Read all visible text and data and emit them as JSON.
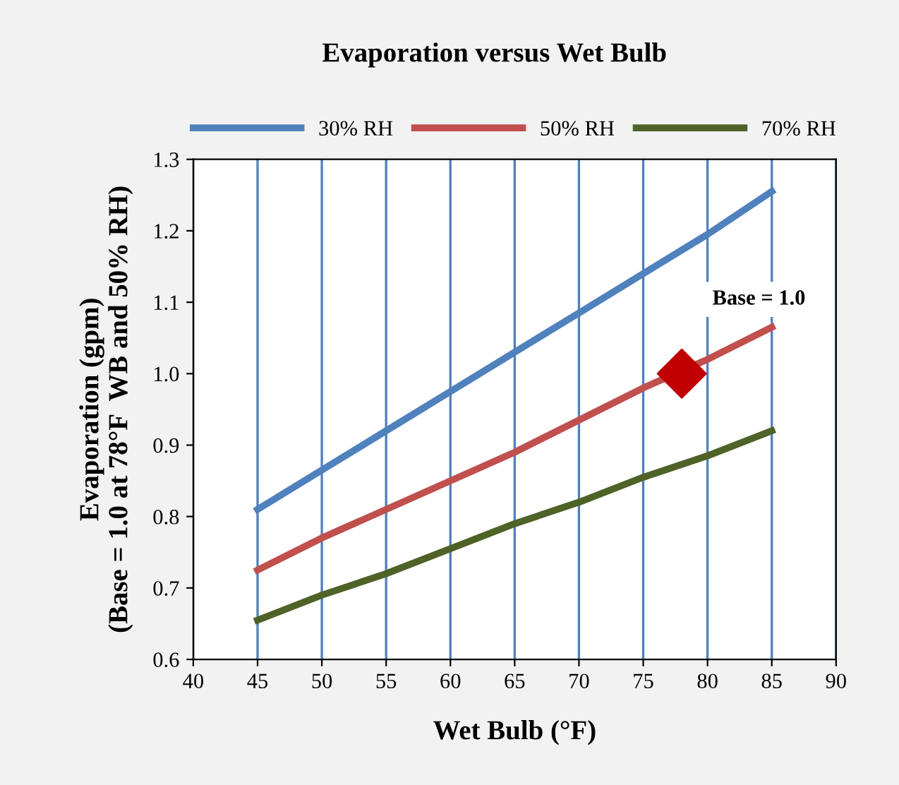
{
  "chart_data": {
    "type": "line",
    "title": "Evaporation versus Wet Bulb",
    "xlabel": "Wet Bulb (°F)",
    "ylabel": "Evaporation (gpm)\n(Base = 1.0 at 78°F  WB and 50% RH)",
    "x": [
      45,
      50,
      55,
      60,
      65,
      70,
      75,
      80,
      85
    ],
    "series": [
      {
        "name": "30% RH",
        "color": "#4f81bd",
        "values": [
          0.81,
          0.865,
          0.92,
          0.975,
          1.03,
          1.085,
          1.14,
          1.195,
          1.255
        ]
      },
      {
        "name": "50% RH",
        "color": "#c0504d",
        "values": [
          0.725,
          0.77,
          0.81,
          0.85,
          0.89,
          0.935,
          0.98,
          1.02,
          1.065
        ]
      },
      {
        "name": "70% RH",
        "color": "#4f6228",
        "values": [
          0.655,
          0.69,
          0.72,
          0.755,
          0.79,
          0.82,
          0.855,
          0.885,
          0.92
        ]
      },
      {
        "type": "scatter",
        "color": "#c00000",
        "marker": "diamond",
        "x": [
          78
        ],
        "values": [
          1.0
        ]
      }
    ],
    "annotations": [
      "Base = 1.0"
    ],
    "xlim": [
      40,
      90
    ],
    "xticks": [
      40,
      45,
      50,
      55,
      60,
      65,
      70,
      75,
      80,
      85,
      90
    ],
    "ylim": [
      0.6,
      1.3
    ],
    "yticks": [
      0.6,
      0.7,
      0.8,
      0.9,
      {
        "value": 1.0,
        "label": "1.0"
      },
      1.1,
      1.2,
      1.3
    ],
    "grid": "x",
    "legend": "top",
    "marker": "none",
    "line_style": "solid"
  }
}
